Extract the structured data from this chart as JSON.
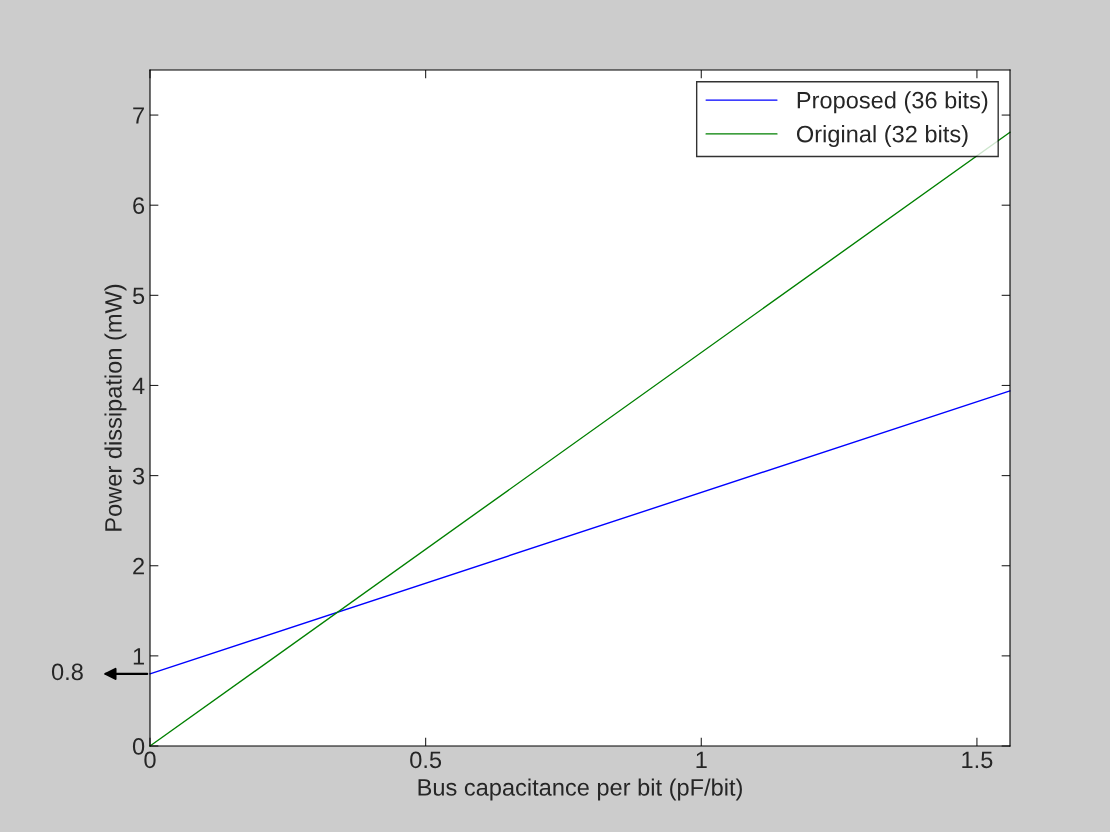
{
  "chart_data": {
    "type": "line",
    "xlabel": "Bus capacitance per bit (pF/bit)",
    "ylabel": "Power dissipation (mW)",
    "xlim": [
      0,
      1.56
    ],
    "x": [
      0,
      1.56
    ],
    "ylim": [
      0,
      7.5
    ],
    "xticks": [
      0,
      0.5,
      1,
      1.5
    ],
    "yticks": [
      0,
      1,
      2,
      3,
      4,
      5,
      6,
      7
    ],
    "series": [
      {
        "name": "Proposed (36 bits)",
        "color": "#0000ff",
        "values": [
          0.8,
          3.94
        ]
      },
      {
        "name": "Original (32 bits)",
        "color": "#008000",
        "values": [
          0,
          6.81
        ]
      }
    ],
    "annotations": [
      {
        "text": "0.8",
        "x": 0,
        "y": 0.8
      }
    ],
    "legend": "top right",
    "grid": false,
    "marker": "none",
    "line_style": "solid"
  }
}
